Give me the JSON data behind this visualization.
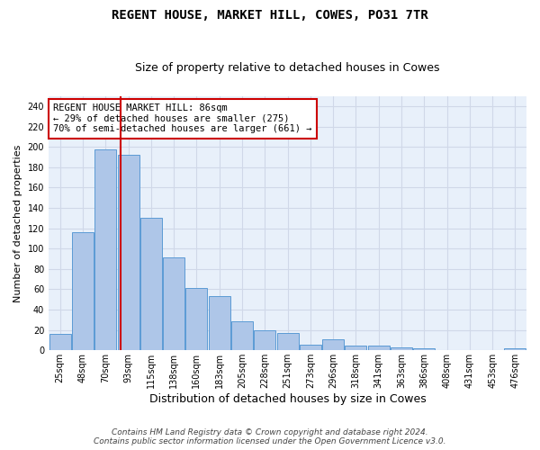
{
  "title": "REGENT HOUSE, MARKET HILL, COWES, PO31 7TR",
  "subtitle": "Size of property relative to detached houses in Cowes",
  "xlabel": "Distribution of detached houses by size in Cowes",
  "ylabel": "Number of detached properties",
  "categories": [
    "25sqm",
    "48sqm",
    "70sqm",
    "93sqm",
    "115sqm",
    "138sqm",
    "160sqm",
    "183sqm",
    "205sqm",
    "228sqm",
    "251sqm",
    "273sqm",
    "296sqm",
    "318sqm",
    "341sqm",
    "363sqm",
    "386sqm",
    "408sqm",
    "431sqm",
    "453sqm",
    "476sqm"
  ],
  "values": [
    16,
    116,
    198,
    192,
    130,
    91,
    61,
    53,
    29,
    20,
    17,
    6,
    11,
    5,
    5,
    3,
    2,
    0,
    0,
    0,
    2
  ],
  "bar_color": "#aec6e8",
  "bar_edge_color": "#5b9bd5",
  "vline_color": "#cc0000",
  "vline_position": 2.65,
  "annotation_text": "REGENT HOUSE MARKET HILL: 86sqm\n← 29% of detached houses are smaller (275)\n70% of semi-detached houses are larger (661) →",
  "annotation_box_color": "#ffffff",
  "annotation_box_edge_color": "#cc0000",
  "ylim": [
    0,
    250
  ],
  "yticks": [
    0,
    20,
    40,
    60,
    80,
    100,
    120,
    140,
    160,
    180,
    200,
    220,
    240
  ],
  "grid_color": "#d0d8e8",
  "background_color": "#e8f0fa",
  "footer_line1": "Contains HM Land Registry data © Crown copyright and database right 2024.",
  "footer_line2": "Contains public sector information licensed under the Open Government Licence v3.0.",
  "title_fontsize": 10,
  "subtitle_fontsize": 9,
  "xlabel_fontsize": 9,
  "ylabel_fontsize": 8,
  "tick_fontsize": 7,
  "annotation_fontsize": 7.5,
  "footer_fontsize": 6.5
}
